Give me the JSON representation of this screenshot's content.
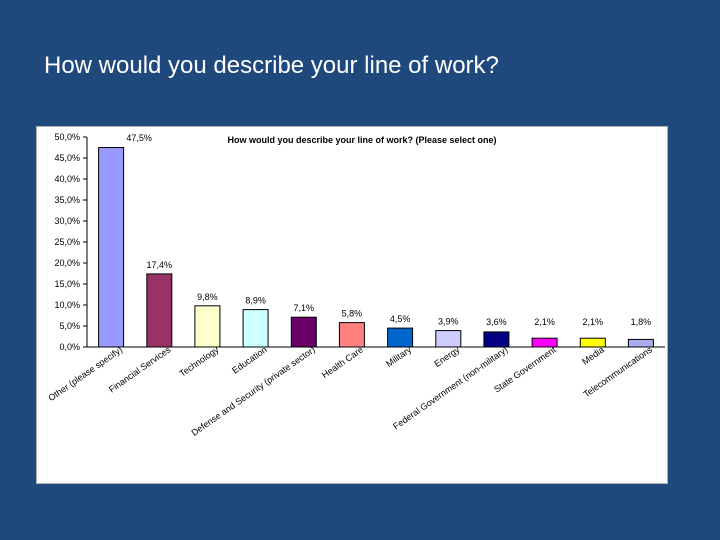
{
  "slide": {
    "title": "How would you describe your line of work?"
  },
  "chart_data": {
    "type": "bar",
    "title": "How would you describe your line of work? (Please select one)",
    "xlabel": "",
    "ylabel": "",
    "ylim": [
      0,
      50
    ],
    "yticks": [
      "0,0%",
      "5,0%",
      "10,0%",
      "15,0%",
      "20,0%",
      "25,0%",
      "30,0%",
      "35,0%",
      "40,0%",
      "45,0%",
      "50,0%"
    ],
    "grid": false,
    "legend": "none",
    "categories": [
      "Other (please specify)",
      "Financial Services",
      "Technology",
      "Education",
      "Defense and Security (private sector)",
      "Health Care",
      "Military",
      "Energy",
      "Federal Government (non-military)",
      "State Government",
      "Media",
      "Telecommunications"
    ],
    "values": [
      47.5,
      17.4,
      9.8,
      8.9,
      7.1,
      5.8,
      4.5,
      3.9,
      3.6,
      2.1,
      2.1,
      1.8
    ],
    "value_labels": [
      "47,5%",
      "17,4%",
      "9,8%",
      "8,9%",
      "7,1%",
      "5,8%",
      "4,5%",
      "3,9%",
      "3,6%",
      "2,1%",
      "2,1%",
      "1,8%"
    ],
    "colors": [
      "#9999ff",
      "#993366",
      "#ffffcc",
      "#ccffff",
      "#660066",
      "#ff8080",
      "#0066cc",
      "#ccccff",
      "#000080",
      "#ff00ff",
      "#ffff00",
      "#aaaaee"
    ]
  }
}
